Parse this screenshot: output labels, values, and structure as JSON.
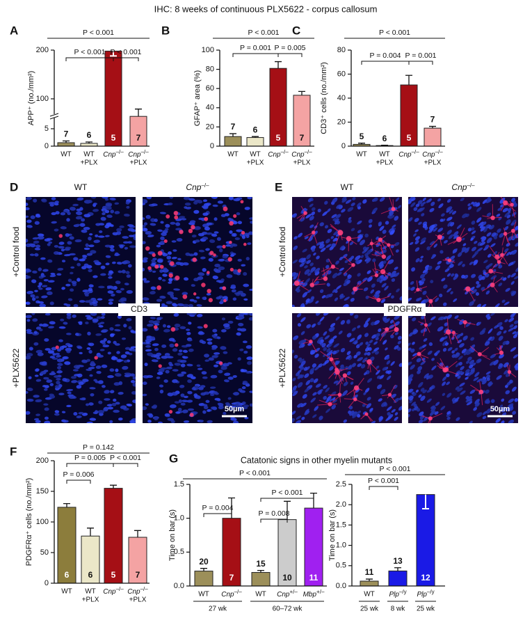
{
  "title": "IHC: 8 weeks of continuous PLX5622 - corpus callosum",
  "chart_data": [
    {
      "panel": "A",
      "type": "bar",
      "ylabel": "APP⁺ (no./mm²)",
      "categories": [
        [
          "WT"
        ],
        [
          "WT",
          "+PLX"
        ],
        [
          "Cnp–/–"
        ],
        [
          "Cnp–/–",
          "+PLX"
        ]
      ],
      "values": [
        1,
        0.8,
        198,
        64
      ],
      "errors": [
        0.5,
        0.4,
        10,
        15
      ],
      "n": [
        7,
        6,
        5,
        7
      ],
      "colors": [
        "#9c8f5a",
        "#ebe7c8",
        "#a50f15",
        "#f4a3a3"
      ],
      "ylim": [
        0,
        200
      ],
      "yticks": [
        0,
        5,
        100,
        200
      ],
      "ybreak": [
        8,
        60
      ],
      "brackets": [
        {
          "from": 0,
          "to": 3,
          "label": "P < 0.001"
        },
        {
          "from": 0,
          "to": 2,
          "label": "P < 0.001"
        },
        {
          "from": 2,
          "to": 3,
          "label": "P < 0.001"
        }
      ]
    },
    {
      "panel": "B",
      "type": "bar",
      "ylabel": "GFAP⁺ area (%)",
      "categories": [
        [
          "WT"
        ],
        [
          "WT",
          "+PLX"
        ],
        [
          "Cnp–/–"
        ],
        [
          "Cnp–/–",
          "+PLX"
        ]
      ],
      "values": [
        10,
        9,
        81,
        53
      ],
      "errors": [
        3,
        1,
        7,
        4
      ],
      "n": [
        7,
        6,
        5,
        7
      ],
      "colors": [
        "#9c8f5a",
        "#ebe7c8",
        "#a50f15",
        "#f4a3a3"
      ],
      "ylim": [
        0,
        100
      ],
      "yticks": [
        0,
        20,
        40,
        60,
        80,
        100
      ],
      "brackets": [
        {
          "from": 0,
          "to": 3,
          "label": "P < 0.001"
        },
        {
          "from": 0,
          "to": 2,
          "label": "P = 0.001"
        },
        {
          "from": 2,
          "to": 3,
          "label": "P = 0.005"
        }
      ]
    },
    {
      "panel": "C",
      "type": "bar",
      "ylabel": "CD3⁺ cells (no./mm²)",
      "categories": [
        [
          "WT"
        ],
        [
          "WT",
          "+PLX"
        ],
        [
          "Cnp–/–"
        ],
        [
          "Cnp–/–",
          "+PLX"
        ]
      ],
      "values": [
        1.5,
        0.5,
        51,
        15
      ],
      "errors": [
        1,
        0.3,
        8,
        1.5
      ],
      "n": [
        5,
        6,
        5,
        7
      ],
      "colors": [
        "#9c8f5a",
        "#ebe7c8",
        "#a50f15",
        "#f4a3a3"
      ],
      "ylim": [
        0,
        80
      ],
      "yticks": [
        0,
        20,
        40,
        60,
        80
      ],
      "brackets": [
        {
          "from": 0,
          "to": 3,
          "label": "P < 0.001"
        },
        {
          "from": 0,
          "to": 2,
          "label": "P = 0.004"
        },
        {
          "from": 2,
          "to": 3,
          "label": "P = 0.001"
        }
      ]
    },
    {
      "panel": "F",
      "type": "bar",
      "ylabel": "PDGFRα⁺ cells (no./mm²)",
      "categories": [
        [
          "WT"
        ],
        [
          "WT",
          "+PLX"
        ],
        [
          "Cnp–/–"
        ],
        [
          "Cnp–/–",
          "+PLX"
        ]
      ],
      "values": [
        124,
        77,
        155,
        75
      ],
      "errors": [
        6,
        13,
        5,
        11
      ],
      "n": [
        6,
        6,
        5,
        7
      ],
      "colors": [
        "#8c7d3c",
        "#ebe7c8",
        "#a50f15",
        "#f4a3a3"
      ],
      "ylim": [
        0,
        200
      ],
      "yticks": [
        0,
        50,
        100,
        150,
        200
      ],
      "brackets": [
        {
          "from": 0,
          "to": 3,
          "label": "P = 0.142"
        },
        {
          "from": 0,
          "to": 2,
          "label": "P = 0.005"
        },
        {
          "from": 2,
          "to": 3,
          "label": "P < 0.001"
        },
        {
          "from": 0,
          "to": 1,
          "label": "P = 0.006"
        }
      ]
    },
    {
      "panel": "G",
      "type": "bar",
      "title": "Catatonic signs in other myelin mutants",
      "ylabel": "Time on bar (s)",
      "categories": [
        [
          "WT"
        ],
        [
          "Cnp–/–"
        ],
        [
          "WT"
        ],
        [
          "Cnp+/–"
        ],
        [
          "Mbp+/–"
        ]
      ],
      "groups": [
        {
          "label": "27 wk",
          "from": 0,
          "to": 1
        },
        {
          "label": "60–72 wk",
          "from": 2,
          "to": 4
        }
      ],
      "values": [
        0.22,
        1.0,
        0.2,
        0.98,
        1.15
      ],
      "errors": [
        0.04,
        0.3,
        0.03,
        0.27,
        0.22
      ],
      "n": [
        20,
        7,
        15,
        10,
        11
      ],
      "colors": [
        "#9c8f5a",
        "#a50f15",
        "#9c8f5a",
        "#cccccc",
        "#a020f0"
      ],
      "ylim": [
        0,
        1.5
      ],
      "yticks": [
        {
          "value": 0,
          "label": "0.0"
        },
        0.5,
        {
          "value": 1,
          "label": "1.0"
        },
        1.5
      ],
      "brackets": [
        {
          "from": 0,
          "to": 4,
          "label": "P < 0.001"
        },
        {
          "from": 0,
          "to": 1,
          "label": "P = 0.004"
        },
        {
          "from": 2,
          "to": 3,
          "label": "P = 0.008"
        },
        {
          "from": 2,
          "to": 4,
          "label": "P < 0.001"
        }
      ]
    },
    {
      "type": "bar",
      "ylabel": "Time on bar (s)",
      "categories": [
        [
          "WT"
        ],
        [
          "Plp–/y"
        ],
        [
          "Plp–/y"
        ]
      ],
      "groups": [
        {
          "label": "25 wk",
          "from": 0,
          "to": 0
        },
        {
          "label": "8 wk",
          "from": 1,
          "to": 1
        },
        {
          "label": "25 wk",
          "from": 2,
          "to": 2
        }
      ],
      "values": [
        0.12,
        0.37,
        2.25
      ],
      "errors": [
        0.05,
        0.08,
        0.35
      ],
      "n": [
        11,
        13,
        12
      ],
      "colors": [
        "#9c8f5a",
        "#1a1ae6",
        "#1a1ae6"
      ],
      "ylim": [
        0,
        2.5
      ],
      "yticks": [
        {
          "value": 0,
          "label": "0.0"
        },
        0.5,
        {
          "value": 1,
          "label": "1.0"
        },
        1.5,
        {
          "value": 2,
          "label": "2.0"
        },
        2.5
      ],
      "brackets": [
        {
          "from": 0,
          "to": 2,
          "label": "P < 0.001"
        },
        {
          "from": 0,
          "to": 1,
          "label": "P < 0.001"
        }
      ]
    }
  ],
  "image_panels": [
    {
      "panel": "D",
      "columns": [
        "WT",
        "Cnp–/–"
      ],
      "rows": [
        "+Control food",
        "+PLX5622"
      ],
      "marker": "CD3",
      "scale_bar": "50µm"
    },
    {
      "panel": "E",
      "columns": [
        "WT",
        "Cnp–/–"
      ],
      "rows": [
        "+Control food",
        "+PLX5622"
      ],
      "marker": "PDGFRα",
      "scale_bar": "50µm"
    }
  ]
}
